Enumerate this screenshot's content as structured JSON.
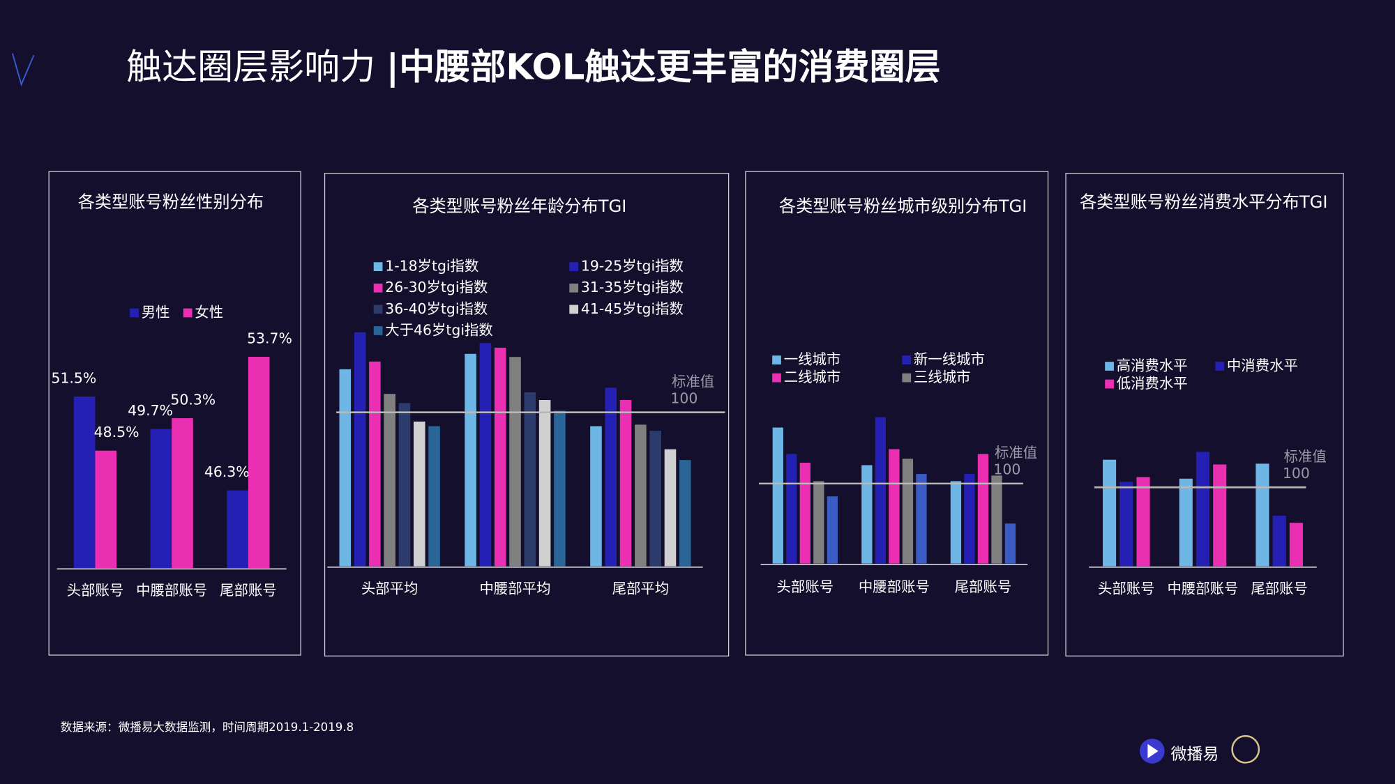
{
  "header": {
    "title_light": "触达圈层影响力",
    "title_bold": "|中腰部KOL触达更丰富的消费圈层"
  },
  "source": "数据来源：微播易大数据监测，时间周期2019.1-2019.8",
  "logo": "微播易",
  "chart_data": [
    {
      "type": "bar",
      "title": "各类型账号粉丝性别分布",
      "categories": [
        "头部账号",
        "中腰部账号",
        "尾部账号"
      ],
      "series": [
        {
          "name": "男性",
          "color": "#2420b4",
          "values": [
            51.5,
            49.7,
            46.3
          ],
          "value_labels": [
            "51.5%",
            "49.7%",
            "46.3%"
          ]
        },
        {
          "name": "女性",
          "color": "#ea2fb2",
          "values": [
            48.5,
            50.3,
            53.7
          ],
          "value_labels": [
            "48.5%",
            "50.3%",
            "53.7%"
          ]
        }
      ],
      "ylim": [
        42,
        55
      ]
    },
    {
      "type": "bar",
      "title": "各类型账号粉丝年龄分布TGI",
      "categories": [
        "头部平均",
        "中腰部平均",
        "尾部平均"
      ],
      "series": [
        {
          "name": "1-18岁tgi指数",
          "color": "#6db6e6",
          "values": [
            128,
            138,
            91
          ]
        },
        {
          "name": "19-25岁tgi指数",
          "color": "#2420b4",
          "values": [
            152,
            145,
            116
          ]
        },
        {
          "name": "26-30岁tgi指数",
          "color": "#ea2fb2",
          "values": [
            133,
            142,
            108
          ]
        },
        {
          "name": "31-35岁tgi指数",
          "color": "#808080",
          "values": [
            112,
            136,
            92
          ]
        },
        {
          "name": "36-40岁tgi指数",
          "color": "#2b3b6b",
          "values": [
            106,
            113,
            88
          ]
        },
        {
          "name": "41-45岁tgi指数",
          "color": "#d0d0d0",
          "values": [
            94,
            108,
            76
          ]
        },
        {
          "name": "大于46岁tgi指数",
          "color": "#2a6597",
          "values": [
            91,
            101,
            69
          ]
        }
      ],
      "ylim": [
        0,
        160
      ],
      "ref_line": 100,
      "ref_label": "标准值"
    },
    {
      "type": "bar",
      "title": "各类型账号粉丝城市级别分布TGI",
      "categories": [
        "头部账号",
        "中腰部账号",
        "尾部账号"
      ],
      "series": [
        {
          "name": "一线城市",
          "color": "#6db6e6",
          "values": [
            170,
            123,
            103
          ]
        },
        {
          "name": "新一线城市",
          "color": "#2420b4",
          "values": [
            137,
            183,
            112
          ]
        },
        {
          "name": "二线城市",
          "color": "#ea2fb2",
          "values": [
            126,
            143,
            137
          ]
        },
        {
          "name": "三线城市",
          "color": "#808080",
          "values": [
            103,
            131,
            110
          ]
        },
        {
          "color": "#3a5cc4",
          "values": [
            84,
            112,
            50
          ]
        }
      ],
      "ylim": [
        0,
        200
      ],
      "ref_line": 100,
      "ref_label": "标准值"
    },
    {
      "type": "bar",
      "title": "各类型账号粉丝消费水平分布TGI",
      "categories": [
        "头部账号",
        "中腰部账号",
        "尾部账号"
      ],
      "series": [
        {
          "name": "高消费水平",
          "color": "#6db6e6",
          "values": [
            135,
            111,
            130
          ]
        },
        {
          "name": "中消费水平",
          "color": "#2420b4",
          "values": [
            107,
            145,
            64
          ]
        },
        {
          "name": "低消费水平",
          "color": "#ea2fb2",
          "values": [
            113,
            129,
            55
          ]
        }
      ],
      "ylim": [
        0,
        160
      ],
      "ref_line": 100,
      "ref_label": "标准值"
    }
  ]
}
